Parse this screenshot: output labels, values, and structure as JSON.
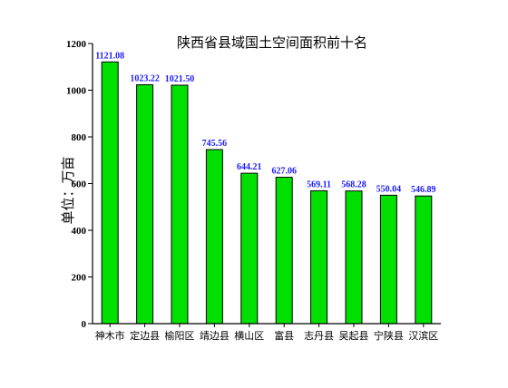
{
  "chart_data": {
    "type": "bar",
    "title": "陕西省县域国土空间面积前十名",
    "xlabel": "",
    "ylabel": "单位：万亩",
    "categories": [
      "神木市",
      "定边县",
      "榆阳区",
      "靖边县",
      "横山区",
      "富县",
      "志丹县",
      "吴起县",
      "宁陕县",
      "汉滨区"
    ],
    "values": [
      1121.08,
      1023.22,
      1021.5,
      745.56,
      644.21,
      627.06,
      569.11,
      568.28,
      550.04,
      546.89
    ],
    "value_labels": [
      "1121.08",
      "1023.22",
      "1021.50",
      "745.56",
      "644.21",
      "627.06",
      "569.11",
      "568.28",
      "550.04",
      "546.89"
    ],
    "ylim": [
      0,
      1200
    ],
    "yticks": [
      0,
      200,
      400,
      600,
      800,
      1000,
      1200
    ],
    "grid": false,
    "legend": "none",
    "colors": {
      "bar": "#00e000",
      "value_label": "#1a1aff"
    }
  }
}
